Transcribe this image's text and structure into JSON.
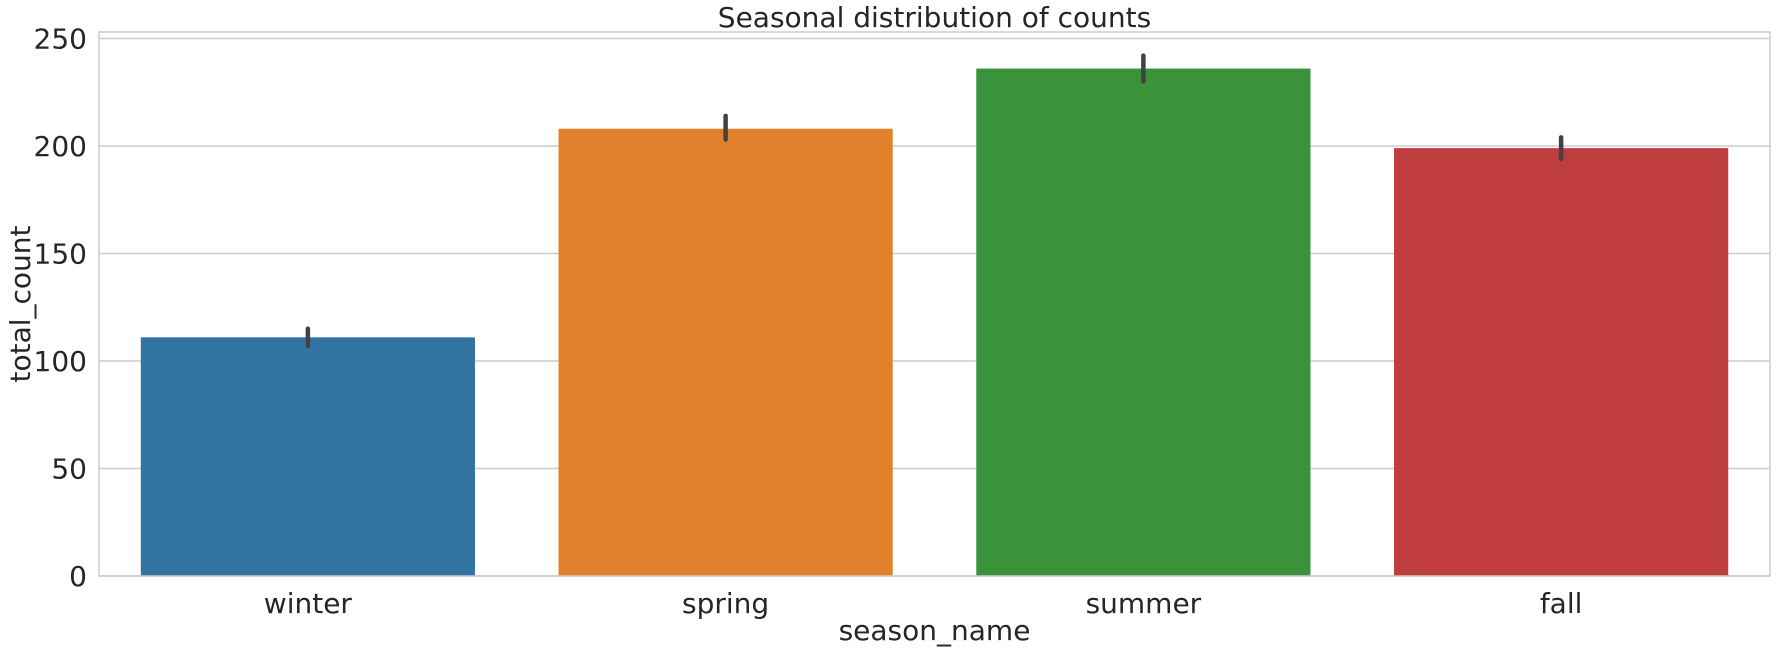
{
  "chart_data": {
    "type": "bar",
    "title": "Seasonal distribution of counts",
    "xlabel": "season_name",
    "ylabel": "total_count",
    "categories": [
      "winter",
      "spring",
      "summer",
      "fall"
    ],
    "values": [
      111,
      208,
      236,
      199
    ],
    "error_low": [
      107,
      203,
      230,
      194
    ],
    "error_high": [
      115,
      214,
      242,
      204
    ],
    "colors": [
      "#3274a1",
      "#e1812c",
      "#3a923a",
      "#c03d3e"
    ],
    "ylim": [
      0,
      253
    ],
    "yticks": [
      0,
      50,
      100,
      150,
      200,
      250
    ],
    "grid": "horizontal",
    "errorbar_color": "#424242"
  }
}
